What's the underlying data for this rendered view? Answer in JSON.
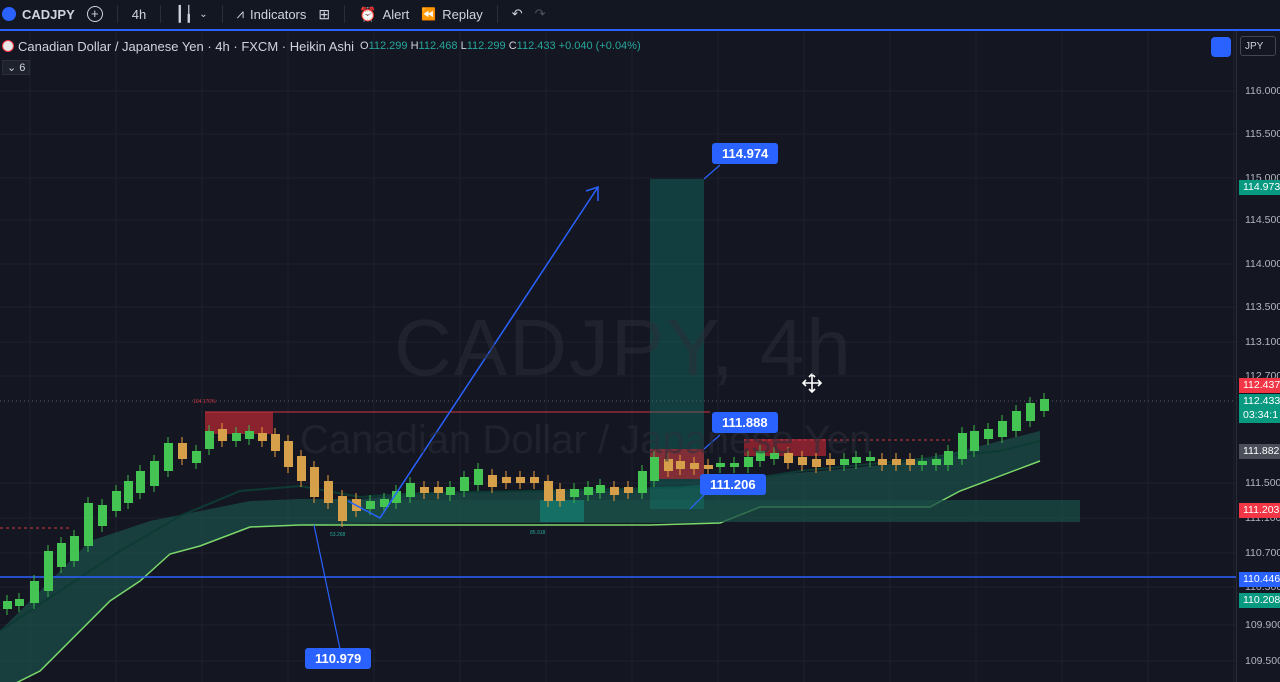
{
  "toolbar": {
    "symbol": "CADJPY",
    "interval": "4h",
    "indicators_label": "Indicators",
    "alert_label": "Alert",
    "replay_label": "Replay"
  },
  "legend": {
    "title": "Canadian Dollar / Japanese Yen · 4h · FXCM · Heikin Ashi",
    "o_label": "O",
    "o": "112.299",
    "h_label": "H",
    "h": "112.468",
    "l_label": "L",
    "l": "112.299",
    "c_label": "C",
    "c": "112.433",
    "change": "+0.040 (+0.04%)",
    "indicator_count": "6"
  },
  "currency": "JPY",
  "watermark": {
    "symbol": "CADJPY, 4h",
    "name": "Canadian Dollar / Japanese Yen"
  },
  "price_axis": {
    "ticks": [
      "116.000",
      "115.500",
      "115.000",
      "114.500",
      "114.000",
      "113.500",
      "113.100",
      "112.700",
      "111.500",
      "111.100",
      "110.700",
      "110.300",
      "109.900",
      "109.500"
    ],
    "tags": [
      {
        "text": "114.973",
        "color": "#089981"
      },
      {
        "text": "112.437",
        "color": "#f23645"
      },
      {
        "text": "112.433",
        "color": "#089981"
      },
      {
        "text": "03:34:1",
        "color": "#089981"
      },
      {
        "text": "111.882",
        "color": "#4a4e59"
      },
      {
        "text": "111.203",
        "color": "#f23645"
      },
      {
        "text": "110.446",
        "color": "#2962ff"
      },
      {
        "text": "110.208",
        "color": "#089981"
      }
    ]
  },
  "callouts": {
    "target": "114.974",
    "entry": "111.888",
    "stop": "111.206",
    "low": "110.979"
  },
  "chart_labels": {
    "left_note": "104.170%",
    "bottom_note_1": "53.268",
    "bottom_note_2": "85.918"
  }
}
